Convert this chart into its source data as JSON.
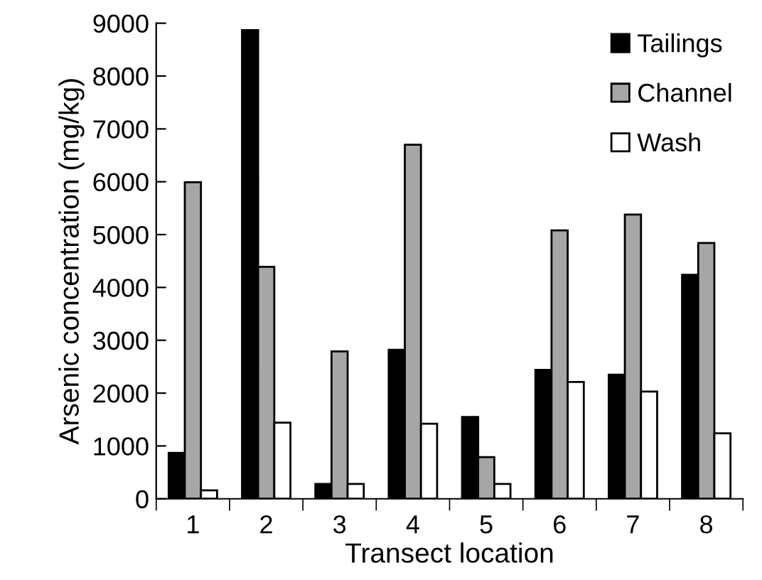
{
  "chart_data": {
    "type": "bar",
    "xlabel": "Transect location",
    "ylabel": "Arsenic concentration (mg/kg)",
    "categories": [
      "1",
      "2",
      "3",
      "4",
      "5",
      "6",
      "7",
      "8"
    ],
    "series": [
      {
        "name": "Tailings",
        "color": "#000000",
        "values": [
          870,
          8870,
          280,
          2820,
          1550,
          2440,
          2350,
          4240
        ]
      },
      {
        "name": "Channel",
        "color": "#a6a6a6",
        "values": [
          5990,
          4390,
          2790,
          6700,
          790,
          5080,
          5380,
          4840
        ]
      },
      {
        "name": "Wash",
        "color": "#ffffff",
        "values": [
          160,
          1440,
          280,
          1420,
          280,
          2210,
          2030,
          1240
        ]
      }
    ],
    "ylim": [
      0,
      9000
    ],
    "yticks": [
      0,
      1000,
      2000,
      3000,
      4000,
      5000,
      6000,
      7000,
      8000,
      9000
    ],
    "grid": false,
    "legend": "top right"
  }
}
